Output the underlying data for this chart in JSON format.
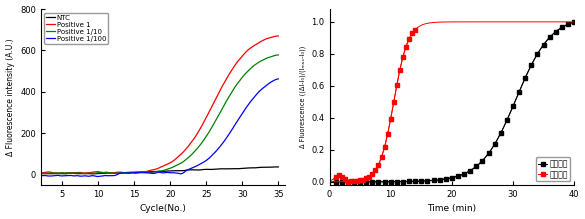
{
  "left": {
    "xlabel": "Cycle(No.)",
    "ylabel": "Δ Fluorescence intensity (A.U.)",
    "xlim": [
      2,
      36
    ],
    "ylim": [
      -50,
      800
    ],
    "yticks": [
      0,
      200,
      400,
      600,
      800
    ],
    "xticks": [
      5,
      10,
      15,
      20,
      25,
      30,
      35
    ],
    "legend": [
      "NTC",
      "Positive 1",
      "Positive 1/10",
      "Positive 1/100"
    ],
    "colors": [
      "black",
      "red",
      "green",
      "blue"
    ]
  },
  "right": {
    "xlabel": "Time (min)",
    "ylabel": "Δ Fluorescence ((ΔI-I₀)/(Iₘₐₓ-I₀))",
    "xlim": [
      0,
      40
    ],
    "ylim": [
      -0.02,
      1.08
    ],
    "yticks": [
      0.0,
      0.2,
      0.4,
      0.6,
      0.8,
      1.0
    ],
    "xticks": [
      0,
      10,
      20,
      30,
      40
    ],
    "legend": [
      "상용장비",
      "개발제품"
    ],
    "colors": [
      "black",
      "red"
    ]
  }
}
